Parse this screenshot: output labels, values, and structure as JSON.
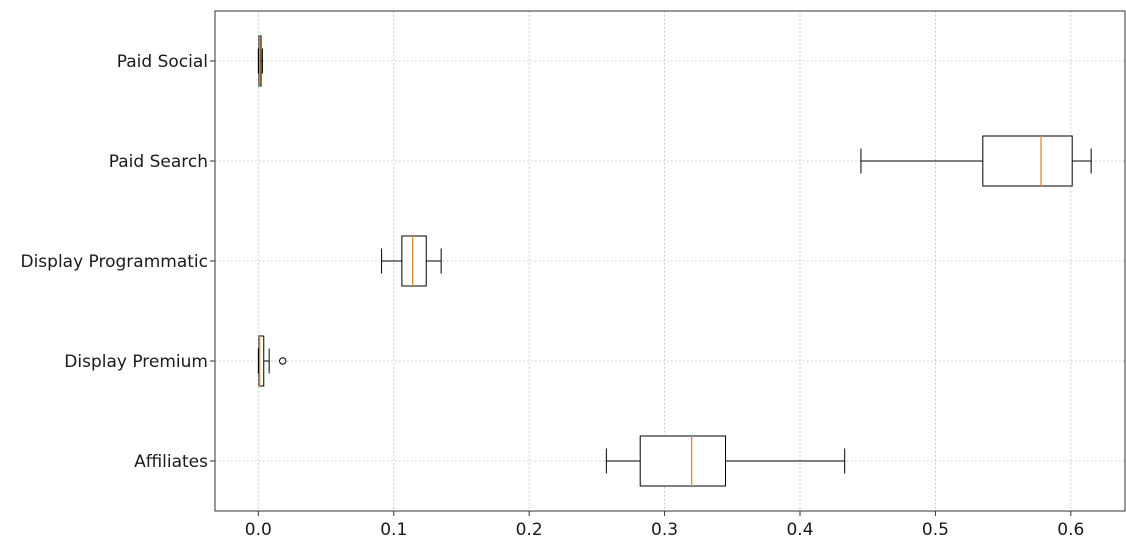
{
  "chart_data": {
    "type": "boxplot",
    "orientation": "horizontal",
    "title": "",
    "xlabel": "",
    "ylabel": "",
    "xlim": [
      -0.032,
      0.64
    ],
    "x_ticks": [
      0.0,
      0.1,
      0.2,
      0.3,
      0.4,
      0.5,
      0.6
    ],
    "x_tick_labels": [
      "0.0",
      "0.1",
      "0.2",
      "0.3",
      "0.4",
      "0.5",
      "0.6"
    ],
    "grid": true,
    "categories": [
      "Affiliates",
      "Display Premium",
      "Display Programmatic",
      "Paid Search",
      "Paid Social"
    ],
    "boxes": [
      {
        "label": "Affiliates",
        "whisker_low": 0.257,
        "q1": 0.282,
        "median": 0.32,
        "q3": 0.345,
        "whisker_high": 0.433,
        "outliers": []
      },
      {
        "label": "Display Premium",
        "whisker_low": 0.0,
        "q1": 0.0005,
        "median": 0.001,
        "q3": 0.004,
        "whisker_high": 0.008,
        "outliers": [
          0.018
        ]
      },
      {
        "label": "Display Programmatic",
        "whisker_low": 0.091,
        "q1": 0.106,
        "median": 0.114,
        "q3": 0.124,
        "whisker_high": 0.135,
        "outliers": []
      },
      {
        "label": "Paid Search",
        "whisker_low": 0.445,
        "q1": 0.535,
        "median": 0.578,
        "q3": 0.601,
        "whisker_high": 0.615,
        "outliers": []
      },
      {
        "label": "Paid Social",
        "whisker_low": 0.0,
        "q1": 0.0005,
        "median": 0.001,
        "q3": 0.002,
        "whisker_high": 0.003,
        "outliers": []
      }
    ],
    "colors": {
      "median": "#e08a2c",
      "box": "#000000",
      "grid": "#b0b0b0"
    }
  }
}
